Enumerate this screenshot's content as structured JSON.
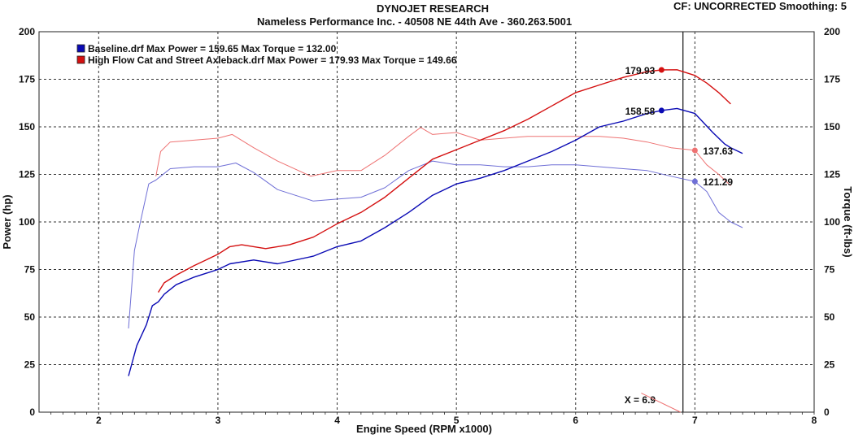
{
  "header": {
    "company": "DYNOJET RESEARCH",
    "shop": "Nameless Performance Inc. - 40508 NE 44th Ave - 360.263.5001",
    "cf_text": "CF: UNCORRECTED  Smoothing: 5"
  },
  "colors": {
    "baseline": "#0a0ab4",
    "baseline_torque": "#6f6fd6",
    "highflow": "#d41010",
    "highflow_torque": "#ee7272",
    "grid": "#333333",
    "background": "#ffffff"
  },
  "chart_data": {
    "type": "line",
    "xlabel": "Engine Speed (RPM x1000)",
    "ylabel_left": "Power (hp)",
    "ylabel_right": "Torque (ft-lbs)",
    "xlim": [
      1.5,
      8
    ],
    "ylim": [
      0,
      200
    ],
    "x_ticks": [
      2,
      3,
      4,
      5,
      6,
      7,
      8
    ],
    "y_ticks": [
      0,
      25,
      50,
      75,
      100,
      125,
      150,
      175,
      200
    ],
    "grid": true,
    "legend_position": "top-left",
    "legend": [
      {
        "name": "Baseline.drf",
        "text": "Baseline.drf Max Power = 159.65     Max Torque = 132.00",
        "color": "#0a0ab4"
      },
      {
        "name": "High Flow Cat and Street Axleback.drf",
        "text": "High Flow Cat and Street Axleback.drf Max Power = 179.93     Max Torque = 149.66",
        "color": "#d41010"
      }
    ],
    "series": [
      {
        "name": "Baseline.drf",
        "metric": "Power",
        "color": "#0a0ab4",
        "x": [
          2.25,
          2.32,
          2.4,
          2.45,
          2.5,
          2.55,
          2.65,
          2.8,
          3.0,
          3.1,
          3.3,
          3.5,
          3.8,
          4.0,
          4.2,
          4.4,
          4.6,
          4.8,
          5.0,
          5.2,
          5.4,
          5.6,
          5.8,
          6.0,
          6.2,
          6.4,
          6.6,
          6.72,
          6.85,
          7.0,
          7.15,
          7.25,
          7.3,
          7.4
        ],
        "y": [
          19,
          35,
          46,
          56,
          58,
          62,
          67,
          71,
          75,
          78,
          80,
          78,
          82,
          87,
          90,
          97,
          105,
          114,
          120,
          123,
          127,
          132,
          137,
          143,
          150,
          153,
          157,
          158.6,
          159.65,
          157,
          147,
          141,
          139,
          136
        ]
      },
      {
        "name": "High Flow Cat and Street Axleback.drf",
        "metric": "Power",
        "color": "#d41010",
        "x": [
          2.5,
          2.55,
          2.65,
          2.8,
          3.0,
          3.1,
          3.2,
          3.4,
          3.6,
          3.8,
          4.0,
          4.2,
          4.4,
          4.6,
          4.8,
          5.0,
          5.2,
          5.4,
          5.6,
          5.8,
          6.0,
          6.2,
          6.4,
          6.6,
          6.72,
          6.85,
          7.0,
          7.1,
          7.2,
          7.3
        ],
        "y": [
          63,
          68,
          72,
          77,
          83,
          87,
          88,
          86,
          88,
          92,
          99,
          105,
          113,
          123,
          133,
          138,
          143,
          148,
          154,
          161,
          168,
          172,
          176,
          179,
          179.93,
          180,
          177,
          173,
          168,
          162
        ]
      },
      {
        "name": "Baseline.drf",
        "metric": "Torque",
        "color": "#6f6fd6",
        "x": [
          2.25,
          2.3,
          2.35,
          2.42,
          2.48,
          2.52,
          2.6,
          2.8,
          3.0,
          3.15,
          3.3,
          3.5,
          3.8,
          4.0,
          4.2,
          4.4,
          4.6,
          4.8,
          5.0,
          5.2,
          5.4,
          5.6,
          5.8,
          6.0,
          6.2,
          6.4,
          6.6,
          6.8,
          7.0,
          7.1,
          7.2,
          7.3,
          7.4
        ],
        "y": [
          44,
          85,
          100,
          120,
          122,
          124,
          128,
          129,
          129,
          131,
          126,
          117,
          111,
          112,
          113,
          118,
          127,
          132,
          130,
          130,
          129,
          129,
          130,
          130,
          129,
          128,
          127,
          124,
          121.29,
          116,
          105,
          100,
          97
        ]
      },
      {
        "name": "High Flow Cat and Street Axleback.drf",
        "metric": "Torque",
        "color": "#ee7272",
        "x": [
          2.48,
          2.52,
          2.6,
          2.8,
          3.0,
          3.12,
          3.3,
          3.5,
          3.78,
          4.0,
          4.2,
          4.4,
          4.6,
          4.7,
          4.8,
          5.0,
          5.2,
          5.4,
          5.6,
          5.8,
          6.0,
          6.2,
          6.4,
          6.6,
          6.8,
          7.0,
          7.1,
          7.2,
          7.3
        ],
        "y": [
          124,
          137,
          142,
          143,
          144,
          146,
          139,
          132,
          124,
          127,
          127,
          135,
          145,
          149.66,
          146,
          147,
          143,
          144,
          145,
          145,
          145,
          145,
          144,
          142,
          139,
          137.63,
          130,
          125,
          119
        ]
      }
    ],
    "markers": [
      {
        "x": 6.72,
        "y": 179.93,
        "label": "179.93",
        "color": "#d41010",
        "side": "left"
      },
      {
        "x": 6.72,
        "y": 158.58,
        "label": "158.58",
        "color": "#0a0ab4",
        "side": "left"
      },
      {
        "x": 7.0,
        "y": 137.63,
        "label": "137.63",
        "color": "#ee7272",
        "side": "right"
      },
      {
        "x": 7.0,
        "y": 121.29,
        "label": "121.29",
        "color": "#6f6fd6",
        "side": "right"
      }
    ],
    "cursor": {
      "x": 6.9,
      "label": "X = 6.9"
    }
  }
}
